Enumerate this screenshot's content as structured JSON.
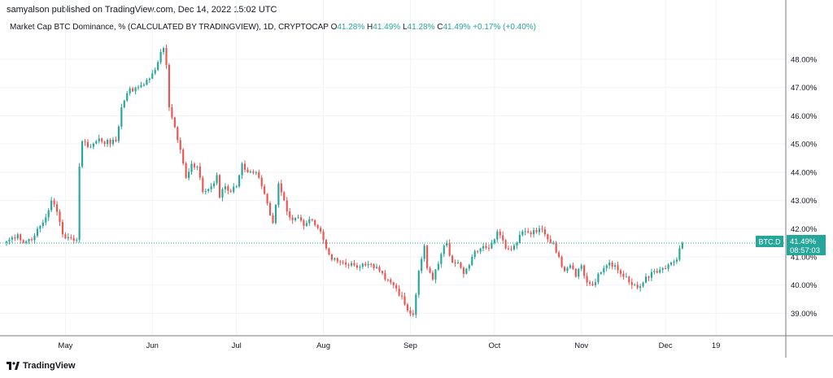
{
  "header": {
    "published": "samyalson published on TradingView.com, Dec 14, 2022 15:02 UTC"
  },
  "legend": {
    "title": "Market Cap BTC Dominance, % (CALCULATED BY TRADINGVIEW), 1D, CRYPTOCAP",
    "open_label": "O",
    "open": "41.28%",
    "high_label": "H",
    "high": "41.49%",
    "low_label": "L",
    "low": "41.28%",
    "close_label": "C",
    "close": "41.49%",
    "change": "+0.17% (+0.40%)"
  },
  "price_tag": {
    "symbol": "BTC.D",
    "price": "41.49%",
    "countdown": "08:57:03"
  },
  "footer": {
    "brand": "TradingView"
  },
  "colors": {
    "up": "#26a69a",
    "down": "#ef5350",
    "grid": "#f0f3fa",
    "axis_text": "#131722",
    "accent": "#26a69a"
  },
  "chart_data": {
    "type": "candlestick",
    "title": "Market Cap BTC Dominance, % (CALCULATED BY TRADINGVIEW), 1D, CRYPTOCAP",
    "ylim": [
      38.35,
      48.95
    ],
    "y_ticks": [
      39,
      40,
      41,
      42,
      43,
      44,
      45,
      46,
      47,
      48
    ],
    "y_tick_labels": [
      "39.00%",
      "40.00%",
      "41.00%",
      "42.00%",
      "43.00%",
      "44.00%",
      "45.00%",
      "46.00%",
      "47.00%",
      "48.00%"
    ],
    "x_ticks": [
      {
        "label": "May",
        "day": 21
      },
      {
        "label": "Jun",
        "day": 52
      },
      {
        "label": "Jul",
        "day": 82
      },
      {
        "label": "Aug",
        "day": 113
      },
      {
        "label": "Sep",
        "day": 144
      },
      {
        "label": "Oct",
        "day": 174
      },
      {
        "label": "Nov",
        "day": 205
      },
      {
        "label": "Dec",
        "day": 235
      },
      {
        "label": "19",
        "day": 253
      }
    ],
    "day_range": [
      0,
      266
    ],
    "last_price": 41.49,
    "anchors": [
      [
        0,
        41.55
      ],
      [
        4,
        41.8
      ],
      [
        6,
        41.5
      ],
      [
        10,
        41.75
      ],
      [
        14,
        42.4
      ],
      [
        16,
        43.0
      ],
      [
        18,
        42.6
      ],
      [
        20,
        41.8
      ],
      [
        22,
        41.7
      ],
      [
        25,
        41.6
      ],
      [
        26,
        44.2
      ],
      [
        27,
        45.1
      ],
      [
        30,
        44.9
      ],
      [
        33,
        45.2
      ],
      [
        37,
        45.0
      ],
      [
        39,
        45.1
      ],
      [
        41,
        46.3
      ],
      [
        43,
        46.8
      ],
      [
        46,
        47.0
      ],
      [
        49,
        47.1
      ],
      [
        52,
        47.5
      ],
      [
        54,
        47.9
      ],
      [
        56,
        48.4
      ],
      [
        57,
        47.8
      ],
      [
        58,
        46.3
      ],
      [
        60,
        45.6
      ],
      [
        62,
        44.8
      ],
      [
        64,
        43.8
      ],
      [
        66,
        44.3
      ],
      [
        68,
        44.2
      ],
      [
        70,
        43.3
      ],
      [
        73,
        43.5
      ],
      [
        75,
        43.9
      ],
      [
        76,
        43.1
      ],
      [
        78,
        43.5
      ],
      [
        80,
        43.3
      ],
      [
        82,
        43.5
      ],
      [
        84,
        44.3
      ],
      [
        86,
        44.0
      ],
      [
        89,
        44.0
      ],
      [
        91,
        43.5
      ],
      [
        93,
        42.9
      ],
      [
        95,
        42.2
      ],
      [
        97,
        43.6
      ],
      [
        99,
        43.0
      ],
      [
        101,
        42.4
      ],
      [
        104,
        42.4
      ],
      [
        106,
        42.1
      ],
      [
        109,
        42.3
      ],
      [
        112,
        41.9
      ],
      [
        114,
        41.3
      ],
      [
        116,
        40.9
      ],
      [
        120,
        40.8
      ],
      [
        124,
        40.7
      ],
      [
        128,
        40.7
      ],
      [
        131,
        40.6
      ],
      [
        133,
        40.5
      ],
      [
        135,
        40.2
      ],
      [
        138,
        40.0
      ],
      [
        141,
        39.6
      ],
      [
        143,
        39.1
      ],
      [
        145,
        38.95
      ],
      [
        147,
        40.5
      ],
      [
        149,
        41.4
      ],
      [
        150,
        40.6
      ],
      [
        152,
        40.2
      ],
      [
        155,
        41.1
      ],
      [
        157,
        41.5
      ],
      [
        159,
        40.8
      ],
      [
        161,
        40.8
      ],
      [
        163,
        40.4
      ],
      [
        166,
        41.0
      ],
      [
        169,
        41.3
      ],
      [
        172,
        41.3
      ],
      [
        175,
        41.9
      ],
      [
        178,
        41.3
      ],
      [
        181,
        41.4
      ],
      [
        184,
        41.9
      ],
      [
        187,
        41.8
      ],
      [
        190,
        42.0
      ],
      [
        192,
        41.8
      ],
      [
        195,
        41.5
      ],
      [
        197,
        41.0
      ],
      [
        199,
        40.5
      ],
      [
        201,
        40.7
      ],
      [
        203,
        40.3
      ],
      [
        205,
        40.7
      ],
      [
        207,
        40.1
      ],
      [
        209,
        40.0
      ],
      [
        211,
        40.4
      ],
      [
        213,
        40.6
      ],
      [
        215,
        40.8
      ],
      [
        217,
        40.7
      ],
      [
        219,
        40.4
      ],
      [
        221,
        40.3
      ],
      [
        223,
        40.0
      ],
      [
        225,
        39.9
      ],
      [
        228,
        40.3
      ],
      [
        231,
        40.5
      ],
      [
        234,
        40.6
      ],
      [
        237,
        40.8
      ],
      [
        239,
        40.9
      ],
      [
        240,
        41.3
      ],
      [
        241,
        41.49
      ]
    ]
  }
}
